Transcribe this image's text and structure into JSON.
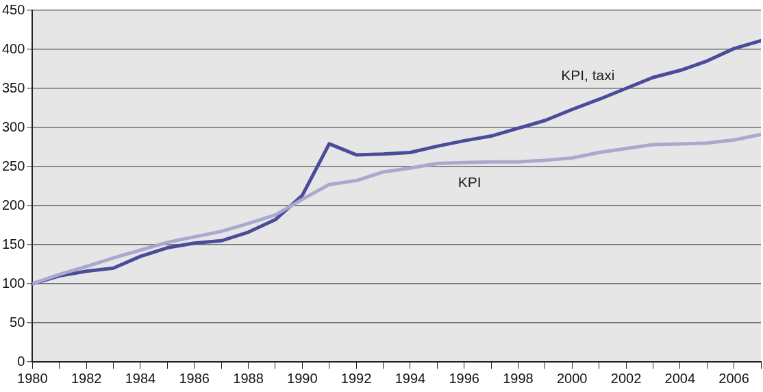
{
  "chart_data": {
    "type": "line",
    "x": [
      1980,
      1981,
      1982,
      1983,
      1984,
      1985,
      1986,
      1987,
      1988,
      1989,
      1990,
      1991,
      1992,
      1993,
      1994,
      1995,
      1996,
      1997,
      1998,
      1999,
      2000,
      2001,
      2002,
      2003,
      2004,
      2005,
      2006,
      2007
    ],
    "series": [
      {
        "name": "KPI, taxi",
        "color": "#4b4b9b",
        "values": [
          100,
          110,
          116,
          120,
          135,
          146,
          152,
          155,
          166,
          182,
          213,
          279,
          265,
          266,
          268,
          276,
          283,
          289,
          299,
          309,
          323,
          336,
          350,
          364,
          373,
          385,
          401,
          411
        ]
      },
      {
        "name": "KPI",
        "color": "#a9a9d0",
        "values": [
          100,
          112,
          122,
          133,
          143,
          153,
          160,
          167,
          177,
          188,
          208,
          227,
          232,
          243,
          248,
          254,
          255,
          256,
          256,
          258,
          261,
          268,
          273,
          278,
          279,
          280,
          284,
          291
        ]
      }
    ],
    "xlim": [
      1980,
      2007
    ],
    "xticks": [
      1980,
      {
        "value": 1981,
        "label": null
      },
      1982,
      {
        "value": 1983,
        "label": null
      },
      1984,
      {
        "value": 1985,
        "label": null
      },
      1986,
      {
        "value": 1987,
        "label": null
      },
      1988,
      {
        "value": 1989,
        "label": null
      },
      1990,
      {
        "value": 1991,
        "label": null
      },
      1992,
      {
        "value": 1993,
        "label": null
      },
      1994,
      {
        "value": 1995,
        "label": null
      },
      1996,
      {
        "value": 1997,
        "label": null
      },
      1998,
      {
        "value": 1999,
        "label": null
      },
      2000,
      {
        "value": 2001,
        "label": null
      },
      2002,
      {
        "value": 2003,
        "label": null
      },
      2004,
      {
        "value": 2005,
        "label": null
      },
      2006,
      {
        "value": 2007,
        "label": null
      }
    ],
    "ylim": [
      0,
      450
    ],
    "yticks": [
      0,
      50,
      100,
      150,
      200,
      250,
      300,
      350,
      400,
      450
    ],
    "grid": "y",
    "marker": "none",
    "line_style": "solid",
    "legend": false
  }
}
